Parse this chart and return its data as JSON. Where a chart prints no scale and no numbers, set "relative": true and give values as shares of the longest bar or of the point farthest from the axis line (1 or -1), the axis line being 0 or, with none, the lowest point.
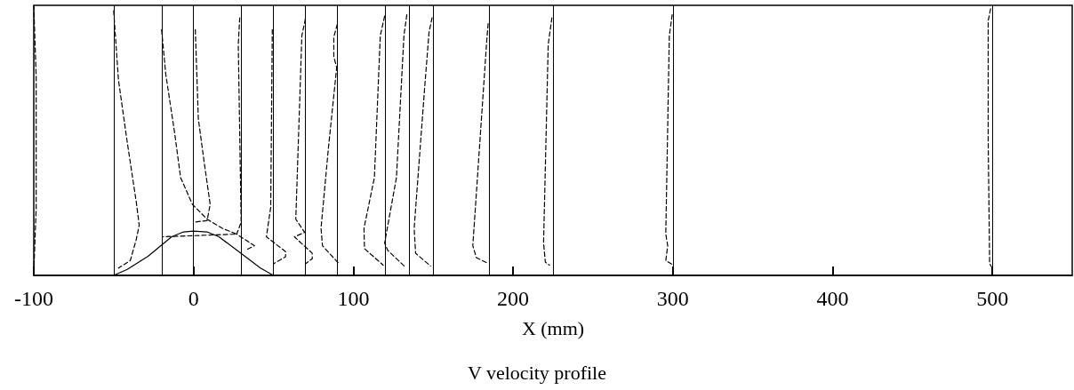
{
  "chart_data": {
    "type": "line",
    "title": "V velocity profile",
    "xlabel": "X (mm)",
    "relative": true,
    "xlim": [
      -100,
      550
    ],
    "xticks": [
      -100,
      0,
      100,
      200,
      300,
      400,
      500
    ],
    "grid": false,
    "marker": "none",
    "tick_labels": "x",
    "ref_lines": [
      {
        "axis": "x",
        "value": -50,
        "color": "#000000"
      },
      {
        "axis": "x",
        "value": -20,
        "color": "#000000"
      },
      {
        "axis": "x",
        "value": 0,
        "color": "#000000"
      },
      {
        "axis": "x",
        "value": 30,
        "color": "#000000"
      },
      {
        "axis": "x",
        "value": 50,
        "color": "#000000"
      },
      {
        "axis": "x",
        "value": 70,
        "color": "#000000"
      },
      {
        "axis": "x",
        "value": 90,
        "color": "#000000"
      },
      {
        "axis": "x",
        "value": 120,
        "color": "#000000"
      },
      {
        "axis": "x",
        "value": 135,
        "color": "#000000"
      },
      {
        "axis": "x",
        "value": 150,
        "color": "#000000"
      },
      {
        "axis": "x",
        "value": 185,
        "color": "#000000"
      },
      {
        "axis": "x",
        "value": 225,
        "color": "#000000"
      },
      {
        "axis": "x",
        "value": 300,
        "color": "#000000"
      },
      {
        "axis": "x",
        "value": 500,
        "color": "#000000"
      }
    ],
    "series": [
      {
        "color": "#000000",
        "line_style": "solid",
        "x": [
          -50,
          -41.5,
          -28.5,
          -13.7,
          -6.3,
          0,
          8.5,
          15.9,
          30.7,
          41.9,
          50
        ],
        "values": [
          0,
          0.022,
          0.071,
          0.143,
          0.161,
          0.164,
          0.161,
          0.143,
          0.077,
          0.027,
          0
        ]
      },
      {
        "color": "#000000",
        "line_style": "dashed",
        "x": [
          -100,
          -98.5,
          -98.5,
          -100
        ],
        "values": [
          1,
          0.735,
          0.25,
          0.01
        ]
      },
      {
        "color": "#000000",
        "line_style": "dashed",
        "x": [
          -50,
          -47,
          -41.5,
          -35.9,
          -34,
          -35.9,
          -39.6,
          -47
        ],
        "values": [
          0.98,
          0.724,
          0.493,
          0.274,
          0.186,
          0.132,
          0.055,
          0.027
        ]
      },
      {
        "color": "#000000",
        "line_style": "dashed",
        "x": [
          -20,
          -17.4,
          -11.8,
          -8.1,
          -0.7,
          8.5,
          17.8,
          27,
          -19
        ],
        "values": [
          0.91,
          0.746,
          0.526,
          0.362,
          0.263,
          0.208,
          0.175,
          0.153,
          0.143
        ]
      },
      {
        "color": "#000000",
        "line_style": "dashed",
        "x": [
          1.1,
          3,
          6.7,
          10.4,
          8.5,
          0
        ],
        "values": [
          0.91,
          0.58,
          0.417,
          0.263,
          0.203,
          0.197
        ]
      },
      {
        "color": "#000000",
        "line_style": "dashed",
        "x": [
          28.9,
          28,
          29.8,
          27,
          38.1,
          32.6
        ],
        "values": [
          0.954,
          0.855,
          0.197,
          0.153,
          0.11,
          0.093
        ]
      },
      {
        "color": "#000000",
        "line_style": "dashed",
        "x": [
          49.3,
          48.3,
          45.6,
          57.6,
          57.6,
          50
        ],
        "values": [
          0.91,
          0.252,
          0.143,
          0.088,
          0.069,
          0.043
        ]
      },
      {
        "color": "#000000",
        "line_style": "dashed",
        "x": [
          70,
          67.8,
          64,
          69.6,
          63.1,
          74.3,
          74.3,
          70
        ],
        "values": [
          0.95,
          0.888,
          0.208,
          0.159,
          0.143,
          0.082,
          0.062,
          0.043
        ]
      },
      {
        "color": "#000000",
        "line_style": "dashed",
        "x": [
          90,
          87.8,
          87.8,
          89.6,
          84.4,
          79.8,
          80.7,
          90.9
        ],
        "values": [
          0.93,
          0.883,
          0.81,
          0.77,
          0.47,
          0.175,
          0.11,
          0.044
        ]
      },
      {
        "color": "#000000",
        "line_style": "dashed",
        "x": [
          119.6,
          116.9,
          113.2,
          106.7,
          107,
          118.7
        ],
        "values": [
          0.96,
          0.888,
          0.362,
          0.175,
          0.099,
          0.038
        ]
      },
      {
        "color": "#000000",
        "line_style": "dashed",
        "x": [
          133.5,
          131.7,
          127,
          119.6,
          121.5,
          132.2
        ],
        "values": [
          0.965,
          0.888,
          0.362,
          0.12,
          0.093,
          0.033
        ]
      },
      {
        "color": "#000000",
        "line_style": "dashed",
        "x": [
          149.3,
          147.4,
          144.6,
          138.1,
          139,
          148.3
        ],
        "values": [
          0.954,
          0.9,
          0.69,
          0.175,
          0.082,
          0.035
        ]
      },
      {
        "color": "#000000",
        "line_style": "dashed",
        "x": [
          184.4,
          183.5,
          174.8,
          177,
          184.4
        ],
        "values": [
          0.932,
          0.867,
          0.11,
          0.066,
          0.044
        ]
      },
      {
        "color": "#000000",
        "line_style": "dashed",
        "x": [
          224.3,
          222,
          219.1,
          220.2,
          222.8
        ],
        "values": [
          0.954,
          0.855,
          0.12,
          0.049,
          0.038
        ]
      },
      {
        "color": "#000000",
        "line_style": "dashed",
        "x": [
          299.6,
          297.8,
          295.6,
          296.8,
          295.6,
          299.3
        ],
        "values": [
          0.965,
          0.888,
          0.153,
          0.11,
          0.055,
          0.042
        ]
      },
      {
        "color": "#000000",
        "line_style": "dashed",
        "x": [
          498.9,
          497.4,
          497.4,
          498.3,
          499.3
        ],
        "values": [
          0.987,
          0.943,
          0.5,
          0.044,
          0.033
        ]
      }
    ]
  }
}
